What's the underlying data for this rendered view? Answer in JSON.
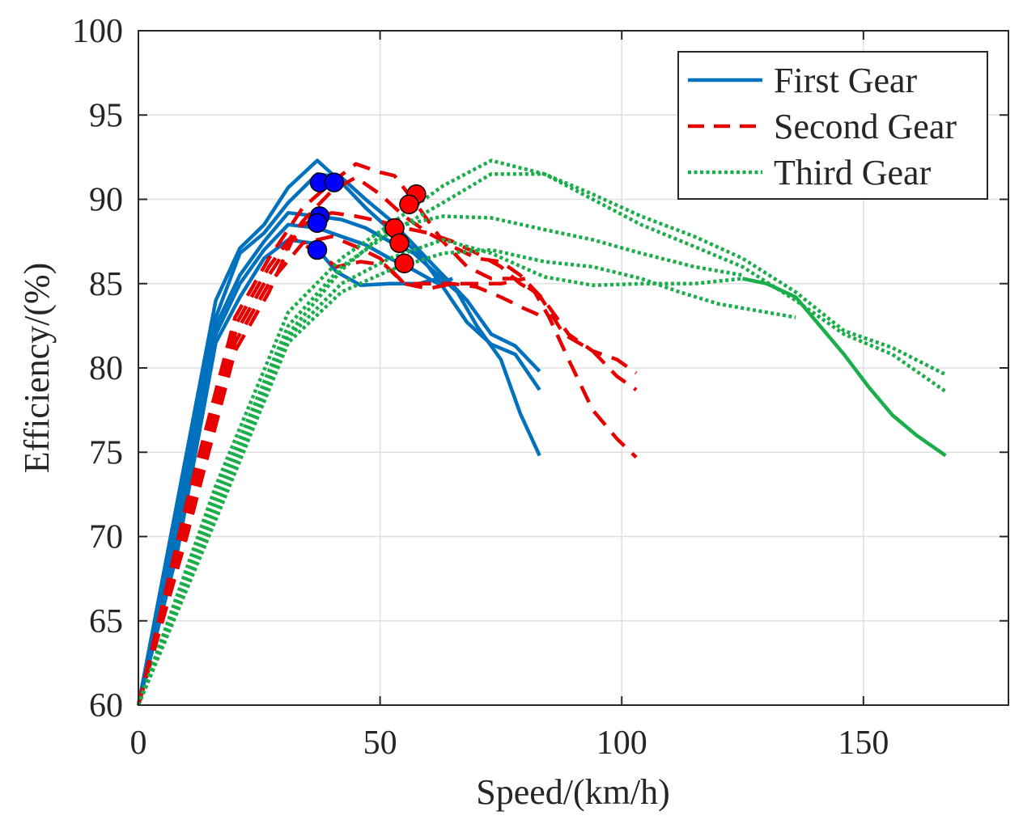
{
  "chart_data": {
    "type": "line",
    "title": "",
    "xlabel": "Speed/(km/h)",
    "ylabel": "Efficiency/(%)",
    "xlim": [
      0,
      180
    ],
    "ylim": [
      60,
      100
    ],
    "xticks": [
      0,
      50,
      100,
      150
    ],
    "yticks": [
      60,
      65,
      70,
      75,
      80,
      85,
      90,
      95,
      100
    ],
    "grid": true,
    "legend_position": "top-right",
    "legend": [
      {
        "label": "First Gear",
        "style": "solid",
        "color": "#0072BD"
      },
      {
        "label": "Second Gear",
        "style": "dashed",
        "color": "#E60000"
      },
      {
        "label": "Third Gear",
        "style": "dotted",
        "color": "#1AAE4A"
      }
    ],
    "series": [
      {
        "name": "First Gear",
        "color": "#0072BD",
        "style": "solid",
        "points": [
          [
            0,
            60
          ],
          [
            8,
            72
          ],
          [
            16,
            84
          ],
          [
            21,
            87.1
          ],
          [
            26,
            88.5
          ],
          [
            31,
            90.7
          ],
          [
            37,
            92.3
          ],
          [
            42,
            91
          ],
          [
            47,
            89.5
          ],
          [
            52,
            88.2
          ],
          [
            58,
            86.8
          ],
          [
            63,
            84.8
          ],
          [
            68,
            82.7
          ],
          [
            73,
            81.4
          ],
          [
            78,
            80.8
          ],
          [
            83,
            78.7
          ]
        ]
      },
      {
        "name": "First Gear",
        "color": "#0072BD",
        "style": "solid",
        "points": [
          [
            0,
            60
          ],
          [
            8,
            71
          ],
          [
            16,
            83
          ],
          [
            21,
            86.8
          ],
          [
            26,
            88
          ],
          [
            31,
            89.8
          ],
          [
            37,
            91.5
          ],
          [
            42,
            91.3
          ],
          [
            47,
            90
          ],
          [
            52,
            88.8
          ],
          [
            58,
            87
          ],
          [
            63,
            85.5
          ],
          [
            68,
            84
          ],
          [
            73,
            82
          ],
          [
            78,
            81.3
          ],
          [
            83,
            79.8
          ]
        ]
      },
      {
        "name": "First Gear",
        "color": "#0072BD",
        "style": "solid",
        "points": [
          [
            0,
            60
          ],
          [
            8,
            70
          ],
          [
            16,
            82.5
          ],
          [
            21,
            85.5
          ],
          [
            26,
            87.5
          ],
          [
            31,
            89.2
          ],
          [
            37,
            89
          ],
          [
            42,
            88.8
          ],
          [
            47,
            88.3
          ],
          [
            52,
            87.5
          ],
          [
            57,
            86.8
          ],
          [
            62,
            85.5
          ],
          [
            66,
            84.5
          ],
          [
            70,
            82.5
          ],
          [
            75,
            80.5
          ],
          [
            79,
            77.3
          ],
          [
            83,
            74.8
          ]
        ]
      },
      {
        "name": "First Gear",
        "color": "#0072BD",
        "style": "solid",
        "points": [
          [
            0,
            60
          ],
          [
            8,
            69.5
          ],
          [
            16,
            82
          ],
          [
            21,
            85
          ],
          [
            26,
            87
          ],
          [
            31,
            88.5
          ],
          [
            37,
            88.3
          ],
          [
            42,
            87.8
          ],
          [
            47,
            87.3
          ],
          [
            52,
            86.5
          ],
          [
            57,
            85.8
          ],
          [
            62,
            85
          ],
          [
            65,
            85.3
          ]
        ]
      },
      {
        "name": "First Gear",
        "color": "#0072BD",
        "style": "solid",
        "points": [
          [
            0,
            60
          ],
          [
            8,
            69
          ],
          [
            16,
            81.5
          ],
          [
            21,
            84.2
          ],
          [
            26,
            86.5
          ],
          [
            31,
            87.6
          ],
          [
            36,
            87.4
          ],
          [
            41,
            85.7
          ],
          [
            46,
            84.9
          ],
          [
            52,
            85
          ],
          [
            58,
            85
          ],
          [
            62,
            85.3
          ],
          [
            64,
            85.3
          ]
        ]
      },
      {
        "name": "Second Gear",
        "color": "#E60000",
        "style": "dashed",
        "points": [
          [
            0,
            60
          ],
          [
            10,
            72
          ],
          [
            20,
            83
          ],
          [
            27,
            86.5
          ],
          [
            34,
            89.5
          ],
          [
            40,
            91
          ],
          [
            45,
            92.1
          ],
          [
            50,
            91.6
          ],
          [
            53,
            91.4
          ],
          [
            58,
            89.5
          ],
          [
            63,
            87.5
          ],
          [
            68,
            86
          ],
          [
            73,
            85.3
          ],
          [
            78,
            85.3
          ],
          [
            82,
            84.5
          ],
          [
            85,
            83
          ],
          [
            89,
            80.5
          ],
          [
            94,
            77.5
          ],
          [
            99,
            75.8
          ],
          [
            103,
            74.7
          ]
        ]
      },
      {
        "name": "Second Gear",
        "color": "#E60000",
        "style": "dashed",
        "points": [
          [
            0,
            60
          ],
          [
            10,
            71.5
          ],
          [
            20,
            82.5
          ],
          [
            27,
            86
          ],
          [
            34,
            88.7
          ],
          [
            40,
            90.5
          ],
          [
            45,
            91.3
          ],
          [
            50,
            90.3
          ],
          [
            55,
            89
          ],
          [
            60,
            88
          ],
          [
            65,
            87.2
          ],
          [
            70,
            86.5
          ],
          [
            75,
            86.3
          ],
          [
            79,
            85.5
          ],
          [
            84,
            84
          ],
          [
            89,
            82
          ],
          [
            94,
            81
          ],
          [
            99,
            80.5
          ],
          [
            103,
            79.7
          ]
        ]
      },
      {
        "name": "Second Gear",
        "color": "#E60000",
        "style": "dashed",
        "points": [
          [
            0,
            60
          ],
          [
            10,
            71
          ],
          [
            20,
            82
          ],
          [
            27,
            85.5
          ],
          [
            34,
            88.5
          ],
          [
            40,
            89.2
          ],
          [
            45,
            89
          ],
          [
            50,
            88.7
          ],
          [
            55,
            88.3
          ],
          [
            60,
            88
          ],
          [
            65,
            87.5
          ],
          [
            70,
            86.8
          ],
          [
            75,
            86
          ],
          [
            79,
            85
          ],
          [
            83,
            84.3
          ],
          [
            88,
            82
          ],
          [
            94,
            81
          ],
          [
            99,
            79.5
          ],
          [
            103,
            78.7
          ]
        ]
      },
      {
        "name": "Second Gear",
        "color": "#E60000",
        "style": "dashed",
        "points": [
          [
            0,
            60
          ],
          [
            10,
            70.5
          ],
          [
            20,
            81.5
          ],
          [
            27,
            85
          ],
          [
            34,
            87.4
          ],
          [
            40,
            87.8
          ],
          [
            45,
            87.2
          ],
          [
            50,
            86.5
          ],
          [
            55,
            85
          ],
          [
            60,
            85
          ],
          [
            65,
            85
          ],
          [
            70,
            84.8
          ],
          [
            75,
            84.2
          ],
          [
            80,
            83.5
          ],
          [
            84,
            83
          ]
        ]
      },
      {
        "name": "Second Gear",
        "color": "#E60000",
        "style": "dashed",
        "points": [
          [
            0,
            60
          ],
          [
            10,
            70
          ],
          [
            20,
            81
          ],
          [
            27,
            84.5
          ],
          [
            32,
            87.7
          ],
          [
            36,
            87
          ],
          [
            41,
            86
          ],
          [
            46,
            86.3
          ],
          [
            51,
            86.1
          ],
          [
            55,
            85
          ],
          [
            60,
            84.7
          ],
          [
            65,
            85
          ],
          [
            70,
            85
          ],
          [
            75,
            85
          ],
          [
            80,
            85.3
          ]
        ]
      },
      {
        "name": "Third Gear",
        "color": "#1AAE4A",
        "style": "solid",
        "points": [
          [
            125,
            85.3
          ],
          [
            130,
            85
          ],
          [
            136,
            84.2
          ],
          [
            141,
            82.5
          ],
          [
            146,
            80.8
          ],
          [
            151,
            78.9
          ],
          [
            156,
            77.2
          ],
          [
            161,
            76
          ],
          [
            167,
            74.8
          ]
        ]
      },
      {
        "name": "Third Gear",
        "color": "#1AAE4A",
        "style": "dotted",
        "points": [
          [
            0,
            60
          ],
          [
            16,
            73
          ],
          [
            31,
            83.3
          ],
          [
            42,
            86.5
          ],
          [
            52,
            88.5
          ],
          [
            63,
            90.8
          ],
          [
            73,
            92.3
          ],
          [
            84,
            91.5
          ],
          [
            94,
            90.3
          ],
          [
            104,
            89
          ],
          [
            115,
            87.8
          ],
          [
            125,
            86.5
          ],
          [
            136,
            84.5
          ],
          [
            146,
            82.2
          ],
          [
            156,
            81.2
          ],
          [
            167,
            79.6
          ]
        ]
      },
      {
        "name": "Third Gear",
        "color": "#1AAE4A",
        "style": "dotted",
        "points": [
          [
            0,
            60
          ],
          [
            16,
            72.5
          ],
          [
            31,
            82.5
          ],
          [
            42,
            86
          ],
          [
            52,
            88
          ],
          [
            63,
            89.8
          ],
          [
            73,
            91.5
          ],
          [
            84,
            91.5
          ],
          [
            94,
            90
          ],
          [
            104,
            88.5
          ],
          [
            115,
            87.2
          ],
          [
            125,
            86
          ],
          [
            136,
            84
          ],
          [
            146,
            82
          ],
          [
            156,
            80.8
          ],
          [
            167,
            78.6
          ]
        ]
      },
      {
        "name": "Third Gear",
        "color": "#1AAE4A",
        "style": "dotted",
        "points": [
          [
            0,
            60
          ],
          [
            16,
            72
          ],
          [
            31,
            82
          ],
          [
            42,
            85.8
          ],
          [
            52,
            88.3
          ],
          [
            63,
            89
          ],
          [
            73,
            88.9
          ],
          [
            84,
            88.2
          ],
          [
            94,
            87.6
          ],
          [
            104,
            86.8
          ],
          [
            115,
            86
          ],
          [
            125,
            85.5
          ]
        ]
      },
      {
        "name": "Third Gear",
        "color": "#1AAE4A",
        "style": "dotted",
        "points": [
          [
            0,
            60
          ],
          [
            16,
            71.5
          ],
          [
            31,
            81.8
          ],
          [
            42,
            85
          ],
          [
            52,
            86.5
          ],
          [
            63,
            87.6
          ],
          [
            73,
            86.8
          ],
          [
            84,
            85.4
          ],
          [
            94,
            84.9
          ],
          [
            104,
            85
          ],
          [
            115,
            85
          ],
          [
            125,
            85.3
          ]
        ]
      },
      {
        "name": "Third Gear",
        "color": "#1AAE4A",
        "style": "dotted",
        "points": [
          [
            0,
            60
          ],
          [
            16,
            71
          ],
          [
            31,
            81.5
          ],
          [
            42,
            84.5
          ],
          [
            52,
            85.8
          ],
          [
            63,
            86.8
          ],
          [
            73,
            87
          ],
          [
            84,
            86.3
          ],
          [
            94,
            86
          ],
          [
            104,
            85.3
          ],
          [
            112,
            84.5
          ],
          [
            120,
            83.8
          ],
          [
            130,
            83.3
          ],
          [
            136,
            83
          ]
        ]
      }
    ],
    "markers": [
      {
        "group": "First Gear",
        "color": "#0000FF",
        "points": [
          [
            37.5,
            91
          ],
          [
            40.5,
            91
          ],
          [
            37.5,
            89
          ],
          [
            37,
            88.6
          ],
          [
            37,
            87
          ]
        ]
      },
      {
        "group": "Second Gear",
        "color": "#FF0000",
        "points": [
          [
            57.5,
            90.3
          ],
          [
            56,
            89.7
          ],
          [
            53,
            88.3
          ],
          [
            54,
            87.4
          ],
          [
            55,
            86.2
          ]
        ]
      }
    ]
  }
}
